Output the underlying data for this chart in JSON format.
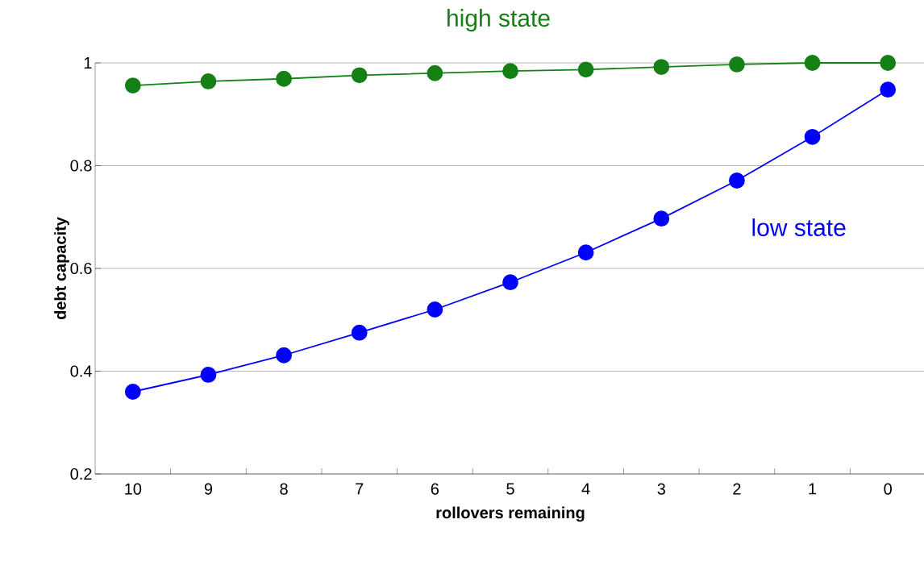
{
  "chart_data": {
    "type": "line",
    "xlabel": "rollovers remaining",
    "ylabel": "debt capacity",
    "categories": [
      "10",
      "9",
      "8",
      "7",
      "6",
      "5",
      "4",
      "3",
      "2",
      "1",
      "0"
    ],
    "ylim": [
      0.2,
      1
    ],
    "yticks": [
      0.2,
      0.4,
      0.6,
      0.8,
      1
    ],
    "grid": "y",
    "legend": false,
    "marker": "circle",
    "line_style": "solid",
    "series": [
      {
        "name": "high state",
        "color": "#158015",
        "values": [
          0.956,
          0.964,
          0.969,
          0.976,
          0.98,
          0.984,
          0.987,
          0.992,
          0.997,
          1.0,
          1.0
        ]
      },
      {
        "name": "low state",
        "color": "#0000ff",
        "values": [
          0.36,
          0.393,
          0.431,
          0.475,
          0.52,
          0.573,
          0.631,
          0.697,
          0.771,
          0.856,
          0.948
        ]
      }
    ]
  }
}
